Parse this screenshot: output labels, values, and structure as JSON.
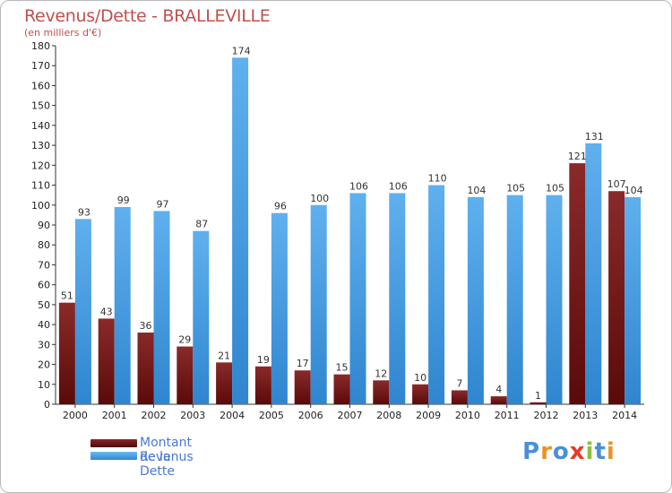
{
  "title": "Revenus/Dette - BRALLEVILLE",
  "subtitle": "(en milliers d'€)",
  "logo": {
    "text": "Proxiti",
    "colors": [
      "#4c8fd8",
      "#e8932b",
      "#4c8fd8",
      "#e8392b",
      "#8cbf3f",
      "#4c8fd8",
      "#e8932b"
    ]
  },
  "legend": [
    {
      "label": "Montant de la Dette",
      "color": "#7a1a1a"
    },
    {
      "label": "Revenus",
      "color": "#4da3e6"
    }
  ],
  "colors": {
    "dette_top": "#8a2a2a",
    "dette_bottom": "#5a0a0a",
    "revenus_top": "#5fb0ee",
    "revenus_bottom": "#2f86cf"
  },
  "chart_data": {
    "type": "bar",
    "categories": [
      "2000",
      "2001",
      "2002",
      "2003",
      "2004",
      "2005",
      "2006",
      "2007",
      "2008",
      "2009",
      "2010",
      "2011",
      "2012",
      "2013",
      "2014"
    ],
    "series": [
      {
        "name": "Montant de la Dette",
        "values": [
          51,
          43,
          36,
          29,
          21,
          19,
          17,
          15,
          12,
          10,
          7,
          4,
          1,
          121,
          107
        ]
      },
      {
        "name": "Revenus",
        "values": [
          93,
          99,
          97,
          87,
          174,
          96,
          100,
          106,
          106,
          110,
          104,
          105,
          105,
          131,
          104
        ]
      }
    ],
    "ylim": [
      0,
      180
    ],
    "yticks": [
      0,
      10,
      20,
      30,
      40,
      50,
      60,
      70,
      80,
      90,
      100,
      110,
      120,
      130,
      140,
      150,
      160,
      170,
      180
    ],
    "grid": false,
    "legend_position": "bottom-left"
  }
}
